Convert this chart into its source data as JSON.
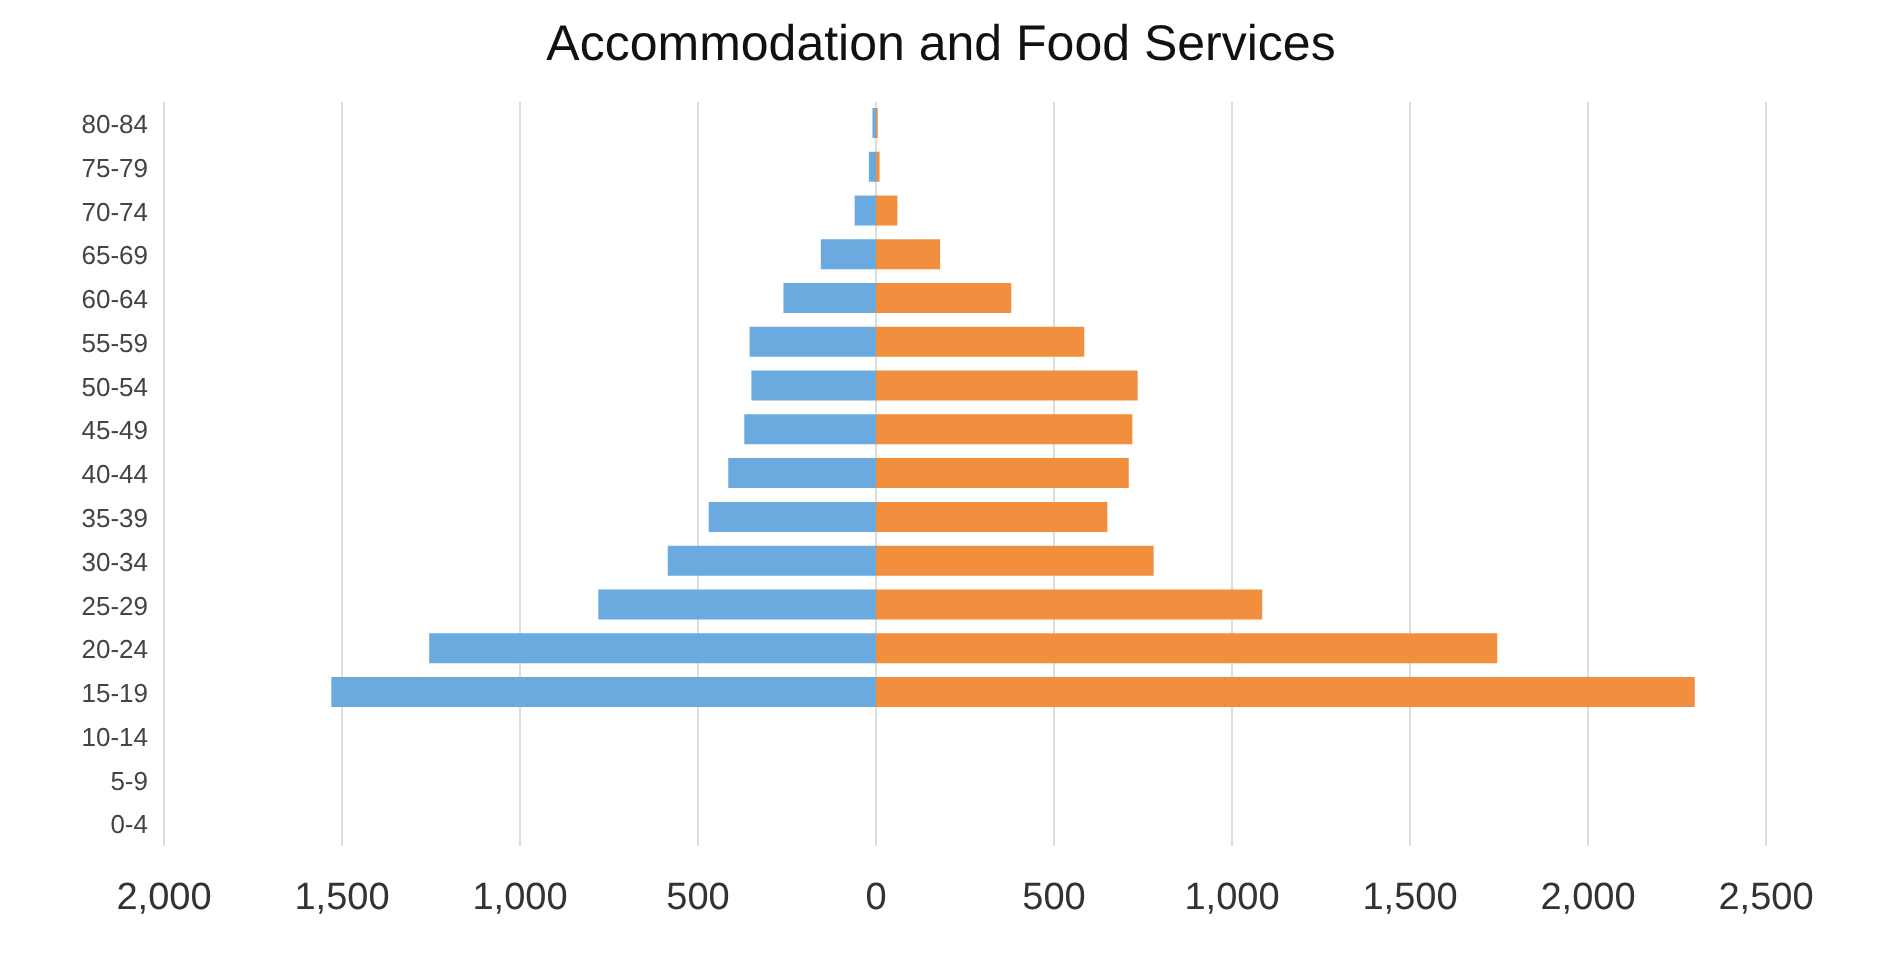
{
  "chart_data": {
    "type": "bar",
    "title": "Accommodation and Food Services",
    "orientation": "horizontal",
    "stacked": true,
    "categories": [
      "80-84",
      "75-79",
      "70-74",
      "65-69",
      "60-64",
      "55-59",
      "50-54",
      "45-49",
      "40-44",
      "35-39",
      "30-34",
      "25-29",
      "20-24",
      "15-19",
      "10-14",
      "5-9",
      "0-4"
    ],
    "series": [
      {
        "color": "#6aaadf",
        "values": [
          -10,
          -20,
          -60,
          -155,
          -260,
          -355,
          -350,
          -370,
          -415,
          -470,
          -585,
          -780,
          -1255,
          -1530,
          null,
          null,
          null
        ]
      },
      {
        "color": "#f28f3e",
        "values": [
          5,
          10,
          60,
          180,
          380,
          585,
          735,
          720,
          710,
          650,
          780,
          1085,
          1745,
          2300,
          null,
          null,
          null
        ]
      }
    ],
    "xlim": [
      -2000,
      2500
    ],
    "xticks": [
      {
        "value": -2000,
        "label": "2,000"
      },
      {
        "value": -1500,
        "label": "1,500"
      },
      {
        "value": -1000,
        "label": "1,000"
      },
      {
        "value": -500,
        "label": "500"
      },
      0,
      500,
      {
        "value": 1000,
        "label": "1,000"
      },
      {
        "value": 1500,
        "label": "1,500"
      },
      {
        "value": 2000,
        "label": "2,000"
      },
      {
        "value": 2500,
        "label": "2,500"
      }
    ],
    "grid": "x",
    "legend": false
  }
}
